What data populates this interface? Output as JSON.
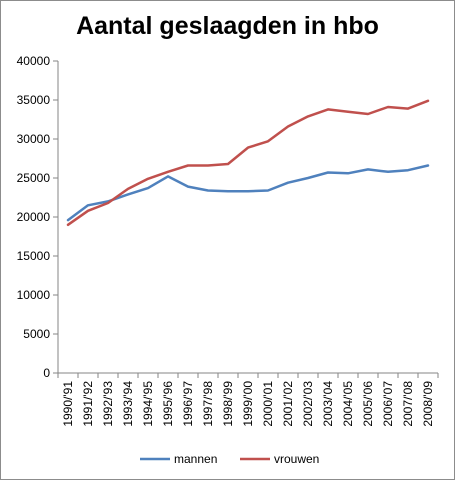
{
  "chart_data": {
    "type": "line",
    "title": "Aantal geslaagden in hbo",
    "xlabel": "",
    "ylabel": "",
    "categories": [
      "1990/'91",
      "1991/'92",
      "1992/'93",
      "1993/'94",
      "1994/'95",
      "1995/'96",
      "1996/'97",
      "1997/'98",
      "1998/'99",
      "1999/'00",
      "2000/'01",
      "2001/'02",
      "2002/'03",
      "2003/'04",
      "2004/'05",
      "2005/'06",
      "2006/'07",
      "2007/'08",
      "2008/'09"
    ],
    "series": [
      {
        "name": "mannen",
        "color": "#4f81bd",
        "values": [
          19600,
          21500,
          22000,
          22900,
          23700,
          25200,
          23900,
          23400,
          23300,
          23300,
          23400,
          24400,
          25000,
          25700,
          25600,
          26100,
          25800,
          26000,
          26600
        ]
      },
      {
        "name": "vrouwen",
        "color": "#c0504d",
        "values": [
          19000,
          20800,
          21800,
          23600,
          24900,
          25800,
          26600,
          26600,
          26800,
          28900,
          29700,
          31600,
          32900,
          33800,
          33500,
          33200,
          34100,
          33900,
          34900
        ]
      }
    ],
    "ylim": [
      0,
      40000
    ],
    "yticks": [
      0,
      5000,
      10000,
      15000,
      20000,
      25000,
      30000,
      35000,
      40000
    ],
    "grid": false,
    "legend_position": "bottom"
  }
}
